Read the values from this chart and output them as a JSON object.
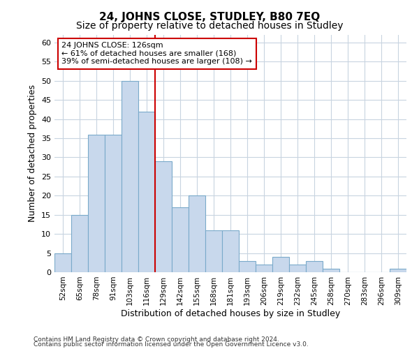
{
  "title1": "24, JOHNS CLOSE, STUDLEY, B80 7EQ",
  "title2": "Size of property relative to detached houses in Studley",
  "xlabel": "Distribution of detached houses by size in Studley",
  "ylabel": "Number of detached properties",
  "categories": [
    "52sqm",
    "65sqm",
    "78sqm",
    "91sqm",
    "103sqm",
    "116sqm",
    "129sqm",
    "142sqm",
    "155sqm",
    "168sqm",
    "181sqm",
    "193sqm",
    "206sqm",
    "219sqm",
    "232sqm",
    "245sqm",
    "258sqm",
    "270sqm",
    "283sqm",
    "296sqm",
    "309sqm"
  ],
  "values": [
    5,
    15,
    36,
    36,
    50,
    42,
    29,
    17,
    20,
    11,
    11,
    3,
    2,
    4,
    2,
    3,
    1,
    0,
    0,
    0,
    1
  ],
  "bar_color": "#c8d8ec",
  "bar_edge_color": "#7aaaca",
  "highlight_line_color": "#cc0000",
  "annotation_line1": "24 JOHNS CLOSE: 126sqm",
  "annotation_line2": "← 61% of detached houses are smaller (168)",
  "annotation_line3": "39% of semi-detached houses are larger (108) →",
  "annotation_box_color": "#ffffff",
  "annotation_box_edge": "#cc0000",
  "ylim": [
    0,
    62
  ],
  "yticks": [
    0,
    5,
    10,
    15,
    20,
    25,
    30,
    35,
    40,
    45,
    50,
    55,
    60
  ],
  "footer1": "Contains HM Land Registry data © Crown copyright and database right 2024.",
  "footer2": "Contains public sector information licensed under the Open Government Licence v3.0.",
  "bg_color": "#ffffff",
  "plot_bg_color": "#ffffff",
  "grid_color": "#c8d4e0",
  "title1_fontsize": 11,
  "title2_fontsize": 10
}
